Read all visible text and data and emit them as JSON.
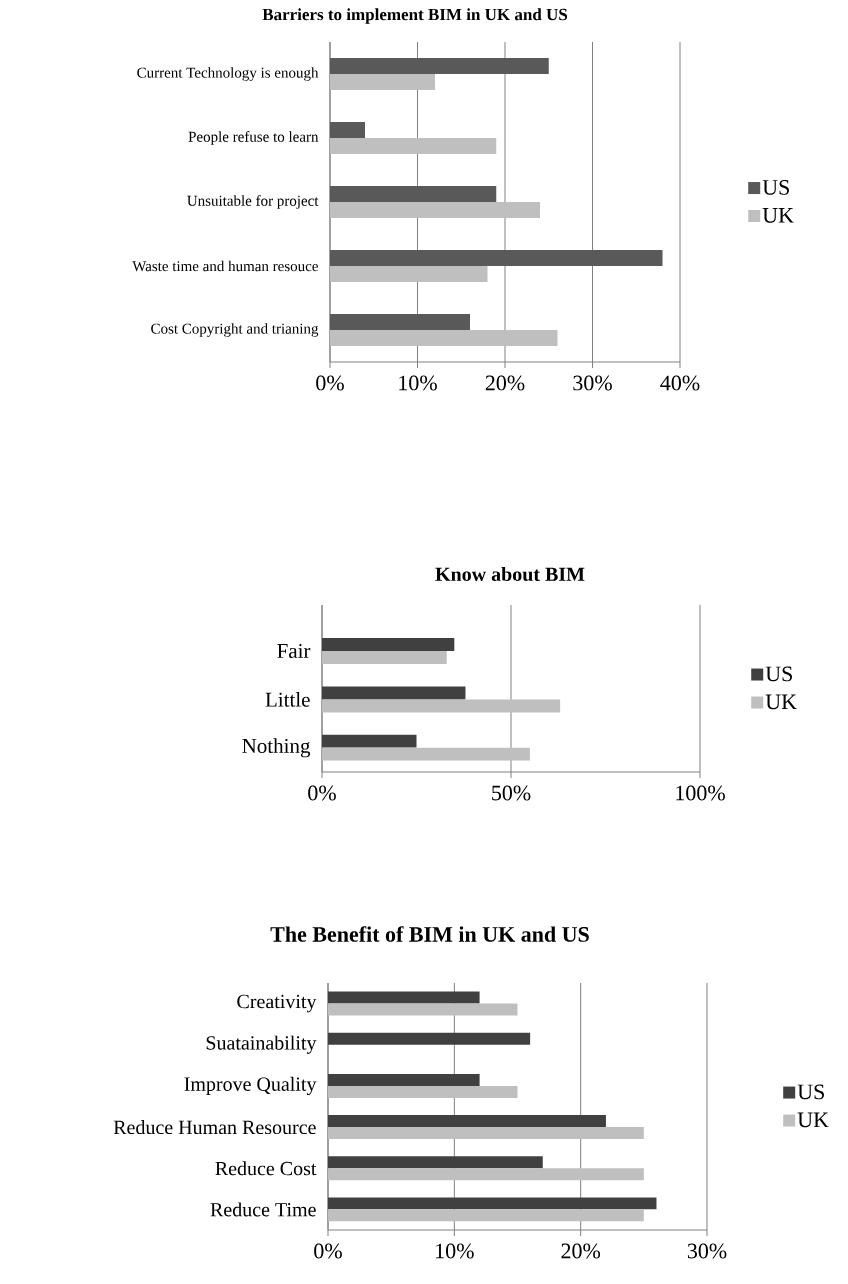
{
  "chart_data": [
    {
      "type": "bar",
      "orientation": "horizontal",
      "title": "Barriers to implement BIM in UK and US",
      "categories": [
        "Current Technology is enough",
        "People refuse to learn",
        "Unsuitable for project",
        "Waste time and human resouce",
        "Cost Copyright and trianing"
      ],
      "series": [
        {
          "name": "US",
          "color": "#595959",
          "values": [
            25,
            4,
            19,
            38,
            16
          ]
        },
        {
          "name": "UK",
          "color": "#bfbfbf",
          "values": [
            12,
            19,
            24,
            18,
            26
          ]
        }
      ],
      "xlim": [
        0,
        40
      ],
      "xticks": [
        {
          "value": 0,
          "label": "0%"
        },
        {
          "value": 10,
          "label": "10%"
        },
        {
          "value": 20,
          "label": "20%"
        },
        {
          "value": 30,
          "label": "30%"
        },
        {
          "value": 40,
          "label": "40%"
        }
      ],
      "grid": "x",
      "legend": "right"
    },
    {
      "type": "bar",
      "orientation": "horizontal",
      "title": "Know about BIM",
      "categories": [
        "Fair",
        "Little",
        "Nothing"
      ],
      "series": [
        {
          "name": "US",
          "color": "#404040",
          "values": [
            35,
            38,
            25
          ]
        },
        {
          "name": "UK",
          "color": "#bfbfbf",
          "values": [
            33,
            63,
            55
          ]
        }
      ],
      "xlim": [
        0,
        100
      ],
      "xticks": [
        {
          "value": 0,
          "label": "0%"
        },
        {
          "value": 50,
          "label": "50%"
        },
        {
          "value": 100,
          "label": "100%"
        }
      ],
      "grid": "x",
      "legend": "right"
    },
    {
      "type": "bar",
      "orientation": "horizontal",
      "title": "The Benefit of BIM in UK and US",
      "categories": [
        "Creativity",
        "Suatainability",
        "Improve Quality",
        "Reduce Human Resource",
        "Reduce Cost",
        "Reduce Time"
      ],
      "series": [
        {
          "name": "US",
          "color": "#404040",
          "values": [
            12,
            16,
            12,
            22,
            17,
            26
          ]
        },
        {
          "name": "UK",
          "color": "#bfbfbf",
          "values": [
            15,
            null,
            15,
            25,
            25,
            25
          ]
        }
      ],
      "xlim": [
        0,
        30
      ],
      "xticks": [
        {
          "value": 0,
          "label": "0%"
        },
        {
          "value": 10,
          "label": "10%"
        },
        {
          "value": 20,
          "label": "20%"
        },
        {
          "value": 30,
          "label": "30%"
        }
      ],
      "grid": "x",
      "legend": "right"
    }
  ]
}
